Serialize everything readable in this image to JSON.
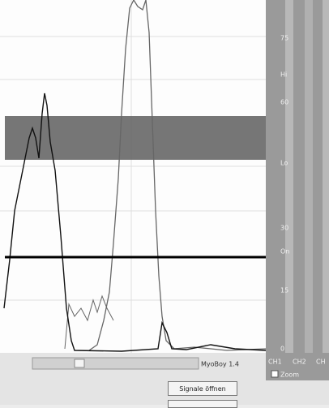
{
  "scale": {
    "labels": [
      "75",
      "Hi",
      "60",
      "Lo",
      "30",
      "On",
      "15",
      "0"
    ]
  },
  "channels": [
    "CH1",
    "CH2",
    "CH"
  ],
  "zoom": "Zoom",
  "status": {
    "app": "MyoBoy 1.4"
  },
  "buttons": [
    "Signale öffnen"
  ]
}
